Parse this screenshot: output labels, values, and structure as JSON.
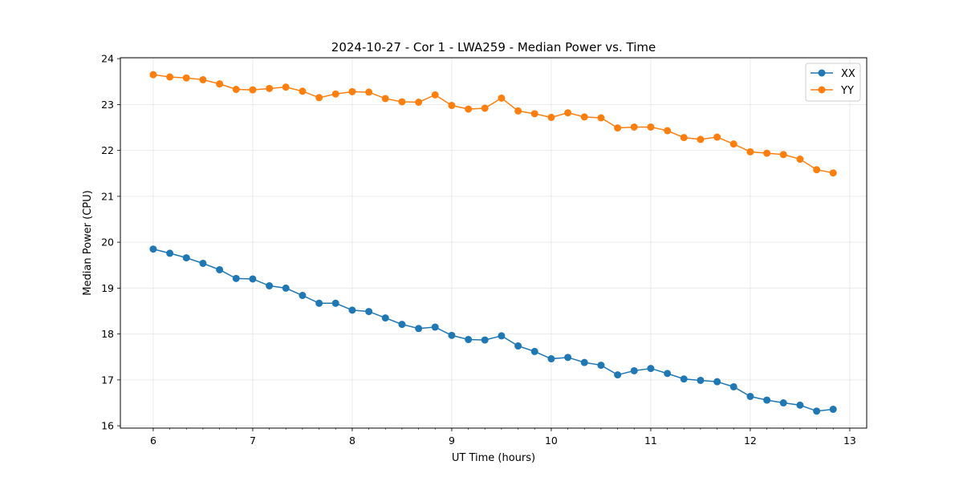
{
  "chart_data": {
    "type": "line",
    "title": "2024-10-27 - Cor 1 - LWA259 - Median Power vs. Time",
    "xlabel": "UT Time (hours)",
    "ylabel": "Median Power (CPU)",
    "xlim": [
      5.67,
      13.17
    ],
    "ylim": [
      15.95,
      24.02
    ],
    "xticks": [
      6,
      7,
      8,
      9,
      10,
      11,
      12,
      13
    ],
    "yticks": [
      16,
      17,
      18,
      19,
      20,
      21,
      22,
      23,
      24
    ],
    "grid": true,
    "legend_position": "top-right",
    "x": [
      6.0,
      6.167,
      6.333,
      6.5,
      6.667,
      6.833,
      7.0,
      7.167,
      7.333,
      7.5,
      7.667,
      7.833,
      8.0,
      8.167,
      8.333,
      8.5,
      8.667,
      8.833,
      9.0,
      9.167,
      9.333,
      9.5,
      9.667,
      9.833,
      10.0,
      10.167,
      10.333,
      10.5,
      10.667,
      10.833,
      11.0,
      11.167,
      11.333,
      11.5,
      11.667,
      11.833,
      12.0,
      12.167,
      12.333,
      12.5,
      12.667,
      12.833
    ],
    "series": [
      {
        "name": "XX",
        "color": "#1f77b4",
        "values": [
          19.85,
          19.76,
          19.66,
          19.54,
          19.4,
          19.21,
          19.2,
          19.05,
          19.0,
          18.84,
          18.67,
          18.67,
          18.52,
          18.49,
          18.35,
          18.21,
          18.12,
          18.15,
          17.97,
          17.88,
          17.87,
          17.96,
          17.74,
          17.62,
          17.46,
          17.49,
          17.38,
          17.32,
          17.11,
          17.2,
          17.25,
          17.14,
          17.02,
          16.99,
          16.96,
          16.85,
          16.64,
          16.56,
          16.5,
          16.45,
          16.32,
          16.36
        ]
      },
      {
        "name": "YY",
        "color": "#ff7f0e",
        "values": [
          23.65,
          23.6,
          23.58,
          23.54,
          23.45,
          23.33,
          23.32,
          23.35,
          23.38,
          23.29,
          23.15,
          23.23,
          23.28,
          23.27,
          23.13,
          23.06,
          23.05,
          23.21,
          22.98,
          22.9,
          22.92,
          23.14,
          22.86,
          22.8,
          22.72,
          22.82,
          22.73,
          22.71,
          22.49,
          22.51,
          22.51,
          22.43,
          22.28,
          22.24,
          22.29,
          22.14,
          21.97,
          21.94,
          21.91,
          21.81,
          21.58,
          21.51
        ]
      }
    ]
  }
}
